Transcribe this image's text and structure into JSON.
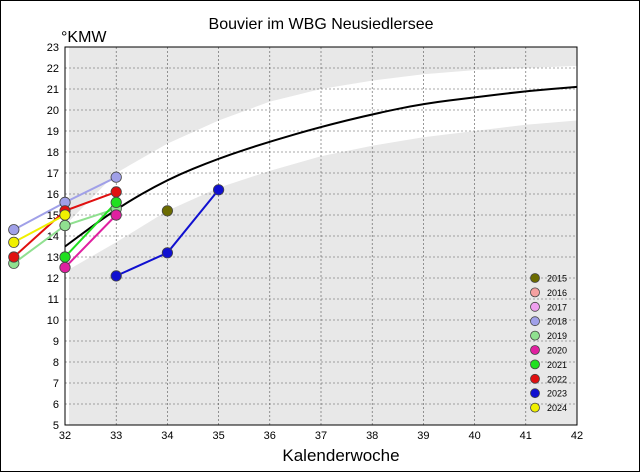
{
  "chart_data": {
    "type": "line",
    "title": "Bouvier im WBG Neusiedlersee",
    "ylabel": "°KMW",
    "xlabel": "Kalenderwoche",
    "xlim": [
      32,
      42
    ],
    "ylim": [
      5,
      23
    ],
    "x_ticks": [
      32,
      33,
      34,
      35,
      36,
      37,
      38,
      39,
      40,
      41,
      42
    ],
    "y_ticks": [
      5,
      6,
      7,
      8,
      9,
      10,
      11,
      12,
      13,
      14,
      15,
      16,
      17,
      18,
      19,
      20,
      21,
      22,
      23
    ],
    "grid": true,
    "legend_position": "bottom-right",
    "reference_curve": {
      "color": "#000000",
      "points": [
        [
          32,
          13.5
        ],
        [
          33,
          15.3
        ],
        [
          34,
          16.7
        ],
        [
          35,
          17.7
        ],
        [
          36,
          18.5
        ],
        [
          37,
          19.2
        ],
        [
          38,
          19.8
        ],
        [
          39,
          20.3
        ],
        [
          40,
          20.6
        ],
        [
          41,
          20.9
        ],
        [
          42,
          21.1
        ]
      ]
    },
    "reference_band": {
      "color": "#ffffff",
      "upper": [
        [
          32,
          14.5
        ],
        [
          33,
          17.0
        ],
        [
          34,
          18.4
        ],
        [
          35,
          19.5
        ],
        [
          36,
          20.4
        ],
        [
          37,
          21.0
        ],
        [
          38,
          21.4
        ],
        [
          39,
          21.7
        ],
        [
          40,
          21.9
        ],
        [
          41,
          22.0
        ],
        [
          42,
          22.1
        ]
      ],
      "lower": [
        [
          32,
          12.3
        ],
        [
          33,
          13.7
        ],
        [
          34,
          15.2
        ],
        [
          35,
          16.3
        ],
        [
          36,
          17.1
        ],
        [
          37,
          17.8
        ],
        [
          38,
          18.3
        ],
        [
          39,
          18.7
        ],
        [
          40,
          19.0
        ],
        [
          41,
          19.3
        ],
        [
          42,
          19.5
        ]
      ]
    },
    "series": [
      {
        "name": "2015",
        "color": "#6b6b00",
        "points": [
          [
            34,
            15.2
          ]
        ]
      },
      {
        "name": "2016",
        "color": "#f4a0a0",
        "points": []
      },
      {
        "name": "2017",
        "color": "#f0a0f0",
        "points": []
      },
      {
        "name": "2018",
        "color": "#a0a0e8",
        "points": [
          [
            31,
            14.3
          ],
          [
            32,
            15.6
          ],
          [
            33,
            16.8
          ]
        ]
      },
      {
        "name": "2019",
        "color": "#90e090",
        "points": [
          [
            31,
            12.7
          ],
          [
            32,
            14.5
          ],
          [
            33,
            15.3
          ]
        ]
      },
      {
        "name": "2020",
        "color": "#e020a0",
        "points": [
          [
            32,
            12.5
          ],
          [
            33,
            15.0
          ]
        ]
      },
      {
        "name": "2021",
        "color": "#20e020",
        "points": [
          [
            32,
            13.0
          ],
          [
            33,
            15.6
          ]
        ]
      },
      {
        "name": "2022",
        "color": "#e01010",
        "points": [
          [
            31,
            13.0
          ],
          [
            32,
            15.2
          ],
          [
            33,
            16.1
          ]
        ]
      },
      {
        "name": "2023",
        "color": "#1010d0",
        "points": [
          [
            33,
            12.1
          ],
          [
            34,
            13.2
          ],
          [
            35,
            16.2
          ]
        ]
      },
      {
        "name": "2024",
        "color": "#f0f000",
        "points": [
          [
            31,
            13.7
          ],
          [
            32,
            15.0
          ]
        ]
      }
    ]
  }
}
